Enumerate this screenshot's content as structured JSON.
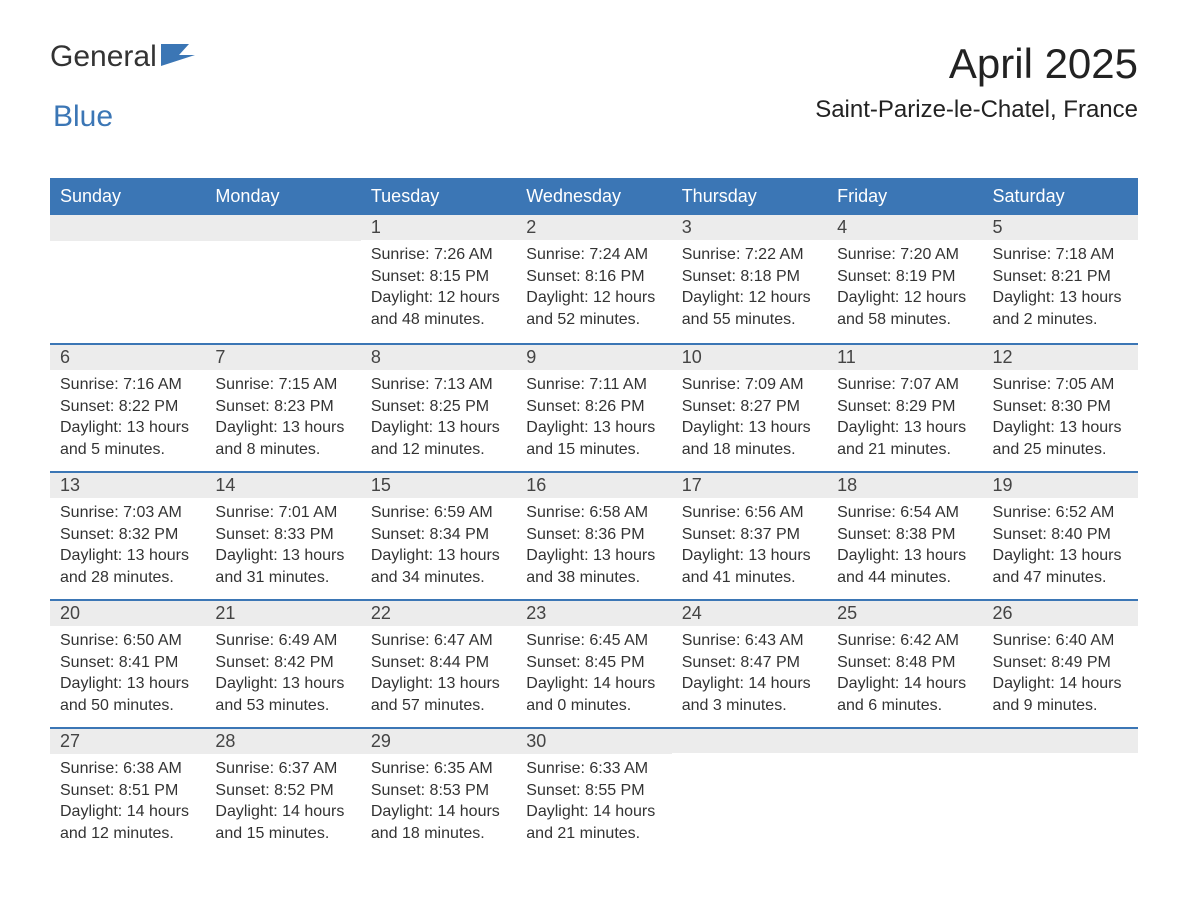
{
  "logo": {
    "text_general": "General",
    "text_blue": "Blue",
    "icon_color": "#3b76b5"
  },
  "title": "April 2025",
  "location": "Saint-Parize-le-Chatel, France",
  "colors": {
    "header_bg": "#3b76b5",
    "header_text": "#ffffff",
    "daynum_bg": "#ececec",
    "week_border": "#3b76b5",
    "body_text": "#333333",
    "background": "#ffffff"
  },
  "typography": {
    "title_fontsize": 42,
    "location_fontsize": 24,
    "header_fontsize": 18,
    "daynum_fontsize": 18,
    "cell_fontsize": 16
  },
  "day_headers": [
    "Sunday",
    "Monday",
    "Tuesday",
    "Wednesday",
    "Thursday",
    "Friday",
    "Saturday"
  ],
  "weeks": [
    [
      null,
      null,
      {
        "num": "1",
        "sunrise": "Sunrise: 7:26 AM",
        "sunset": "Sunset: 8:15 PM",
        "daylight1": "Daylight: 12 hours",
        "daylight2": "and 48 minutes."
      },
      {
        "num": "2",
        "sunrise": "Sunrise: 7:24 AM",
        "sunset": "Sunset: 8:16 PM",
        "daylight1": "Daylight: 12 hours",
        "daylight2": "and 52 minutes."
      },
      {
        "num": "3",
        "sunrise": "Sunrise: 7:22 AM",
        "sunset": "Sunset: 8:18 PM",
        "daylight1": "Daylight: 12 hours",
        "daylight2": "and 55 minutes."
      },
      {
        "num": "4",
        "sunrise": "Sunrise: 7:20 AM",
        "sunset": "Sunset: 8:19 PM",
        "daylight1": "Daylight: 12 hours",
        "daylight2": "and 58 minutes."
      },
      {
        "num": "5",
        "sunrise": "Sunrise: 7:18 AM",
        "sunset": "Sunset: 8:21 PM",
        "daylight1": "Daylight: 13 hours",
        "daylight2": "and 2 minutes."
      }
    ],
    [
      {
        "num": "6",
        "sunrise": "Sunrise: 7:16 AM",
        "sunset": "Sunset: 8:22 PM",
        "daylight1": "Daylight: 13 hours",
        "daylight2": "and 5 minutes."
      },
      {
        "num": "7",
        "sunrise": "Sunrise: 7:15 AM",
        "sunset": "Sunset: 8:23 PM",
        "daylight1": "Daylight: 13 hours",
        "daylight2": "and 8 minutes."
      },
      {
        "num": "8",
        "sunrise": "Sunrise: 7:13 AM",
        "sunset": "Sunset: 8:25 PM",
        "daylight1": "Daylight: 13 hours",
        "daylight2": "and 12 minutes."
      },
      {
        "num": "9",
        "sunrise": "Sunrise: 7:11 AM",
        "sunset": "Sunset: 8:26 PM",
        "daylight1": "Daylight: 13 hours",
        "daylight2": "and 15 minutes."
      },
      {
        "num": "10",
        "sunrise": "Sunrise: 7:09 AM",
        "sunset": "Sunset: 8:27 PM",
        "daylight1": "Daylight: 13 hours",
        "daylight2": "and 18 minutes."
      },
      {
        "num": "11",
        "sunrise": "Sunrise: 7:07 AM",
        "sunset": "Sunset: 8:29 PM",
        "daylight1": "Daylight: 13 hours",
        "daylight2": "and 21 minutes."
      },
      {
        "num": "12",
        "sunrise": "Sunrise: 7:05 AM",
        "sunset": "Sunset: 8:30 PM",
        "daylight1": "Daylight: 13 hours",
        "daylight2": "and 25 minutes."
      }
    ],
    [
      {
        "num": "13",
        "sunrise": "Sunrise: 7:03 AM",
        "sunset": "Sunset: 8:32 PM",
        "daylight1": "Daylight: 13 hours",
        "daylight2": "and 28 minutes."
      },
      {
        "num": "14",
        "sunrise": "Sunrise: 7:01 AM",
        "sunset": "Sunset: 8:33 PM",
        "daylight1": "Daylight: 13 hours",
        "daylight2": "and 31 minutes."
      },
      {
        "num": "15",
        "sunrise": "Sunrise: 6:59 AM",
        "sunset": "Sunset: 8:34 PM",
        "daylight1": "Daylight: 13 hours",
        "daylight2": "and 34 minutes."
      },
      {
        "num": "16",
        "sunrise": "Sunrise: 6:58 AM",
        "sunset": "Sunset: 8:36 PM",
        "daylight1": "Daylight: 13 hours",
        "daylight2": "and 38 minutes."
      },
      {
        "num": "17",
        "sunrise": "Sunrise: 6:56 AM",
        "sunset": "Sunset: 8:37 PM",
        "daylight1": "Daylight: 13 hours",
        "daylight2": "and 41 minutes."
      },
      {
        "num": "18",
        "sunrise": "Sunrise: 6:54 AM",
        "sunset": "Sunset: 8:38 PM",
        "daylight1": "Daylight: 13 hours",
        "daylight2": "and 44 minutes."
      },
      {
        "num": "19",
        "sunrise": "Sunrise: 6:52 AM",
        "sunset": "Sunset: 8:40 PM",
        "daylight1": "Daylight: 13 hours",
        "daylight2": "and 47 minutes."
      }
    ],
    [
      {
        "num": "20",
        "sunrise": "Sunrise: 6:50 AM",
        "sunset": "Sunset: 8:41 PM",
        "daylight1": "Daylight: 13 hours",
        "daylight2": "and 50 minutes."
      },
      {
        "num": "21",
        "sunrise": "Sunrise: 6:49 AM",
        "sunset": "Sunset: 8:42 PM",
        "daylight1": "Daylight: 13 hours",
        "daylight2": "and 53 minutes."
      },
      {
        "num": "22",
        "sunrise": "Sunrise: 6:47 AM",
        "sunset": "Sunset: 8:44 PM",
        "daylight1": "Daylight: 13 hours",
        "daylight2": "and 57 minutes."
      },
      {
        "num": "23",
        "sunrise": "Sunrise: 6:45 AM",
        "sunset": "Sunset: 8:45 PM",
        "daylight1": "Daylight: 14 hours",
        "daylight2": "and 0 minutes."
      },
      {
        "num": "24",
        "sunrise": "Sunrise: 6:43 AM",
        "sunset": "Sunset: 8:47 PM",
        "daylight1": "Daylight: 14 hours",
        "daylight2": "and 3 minutes."
      },
      {
        "num": "25",
        "sunrise": "Sunrise: 6:42 AM",
        "sunset": "Sunset: 8:48 PM",
        "daylight1": "Daylight: 14 hours",
        "daylight2": "and 6 minutes."
      },
      {
        "num": "26",
        "sunrise": "Sunrise: 6:40 AM",
        "sunset": "Sunset: 8:49 PM",
        "daylight1": "Daylight: 14 hours",
        "daylight2": "and 9 minutes."
      }
    ],
    [
      {
        "num": "27",
        "sunrise": "Sunrise: 6:38 AM",
        "sunset": "Sunset: 8:51 PM",
        "daylight1": "Daylight: 14 hours",
        "daylight2": "and 12 minutes."
      },
      {
        "num": "28",
        "sunrise": "Sunrise: 6:37 AM",
        "sunset": "Sunset: 8:52 PM",
        "daylight1": "Daylight: 14 hours",
        "daylight2": "and 15 minutes."
      },
      {
        "num": "29",
        "sunrise": "Sunrise: 6:35 AM",
        "sunset": "Sunset: 8:53 PM",
        "daylight1": "Daylight: 14 hours",
        "daylight2": "and 18 minutes."
      },
      {
        "num": "30",
        "sunrise": "Sunrise: 6:33 AM",
        "sunset": "Sunset: 8:55 PM",
        "daylight1": "Daylight: 14 hours",
        "daylight2": "and 21 minutes."
      },
      null,
      null,
      null
    ]
  ]
}
